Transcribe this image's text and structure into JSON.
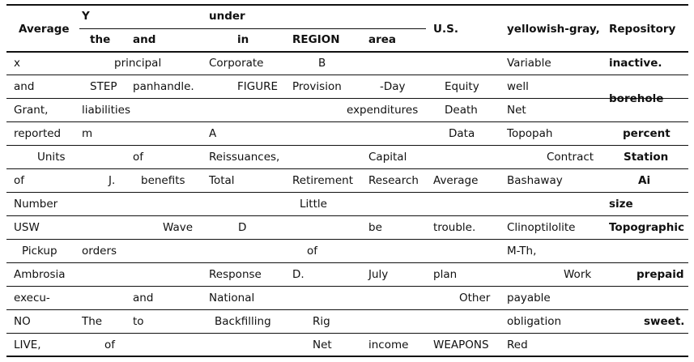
{
  "header": {
    "col1": "Average",
    "span_top_left": "Y",
    "span_top_mid": "under",
    "sub": [
      "the",
      "and",
      "in",
      "REGION",
      "area"
    ],
    "col_us": "U.S.",
    "col_color": "yellowish-gray,",
    "col_repo": "Repository"
  },
  "rows": [
    {
      "cells": [
        "x",
        "principal",
        "Corporate",
        "B",
        "",
        "",
        "",
        "Variable"
      ],
      "repo": "inactive."
    },
    {
      "cells": [
        "and",
        "STEP",
        "panhandle.",
        "FIGURE",
        "Provision",
        "-Day",
        "Equity",
        "well"
      ],
      "repo": ""
    },
    {
      "cells": [
        "Grant,",
        "liabilities",
        "",
        "",
        "",
        "expenditures",
        "Death",
        "Net"
      ],
      "repo": "borehole"
    },
    {
      "cells": [
        "reported",
        "m",
        "",
        "A",
        "",
        "",
        "Data",
        "Topopah"
      ],
      "repo": "percent"
    },
    {
      "cells": [
        "Units",
        "of",
        "Reissuances,",
        "",
        "Capital",
        "",
        "",
        "Contract"
      ],
      "repo": "Station"
    },
    {
      "cells": [
        "of",
        "J.",
        "benefits",
        "Total",
        "Retirement",
        "Research",
        "Average",
        "Bashaway"
      ],
      "repo": "Ai"
    },
    {
      "cells": [
        "Number",
        "",
        "",
        "Little",
        "",
        "",
        "",
        ""
      ],
      "repo": "size"
    },
    {
      "cells": [
        "USW",
        "Wave",
        "D",
        "",
        "be",
        "trouble.",
        "Clinoptilolite",
        ""
      ],
      "repo": "Topographic"
    },
    {
      "cells": [
        "Pickup",
        "orders",
        "",
        "of",
        "",
        "",
        "",
        "M-Th,"
      ],
      "repo": ""
    },
    {
      "cells": [
        "Ambrosia",
        "",
        "Response",
        "D.",
        "July",
        "plan",
        "",
        "Work"
      ],
      "repo": "prepaid"
    },
    {
      "cells": [
        "execu-",
        "and",
        "National",
        "",
        "",
        "Other",
        "payable",
        ""
      ],
      "repo": ""
    },
    {
      "cells": [
        "NO",
        "The",
        "to",
        "Backfilling",
        "Rig",
        "",
        "",
        "obligation"
      ],
      "repo": "sweet."
    },
    {
      "cells": [
        "LIVE,",
        "of",
        "",
        "Net",
        "income",
        "WEAPONS",
        "Red",
        ""
      ],
      "repo": ""
    }
  ]
}
